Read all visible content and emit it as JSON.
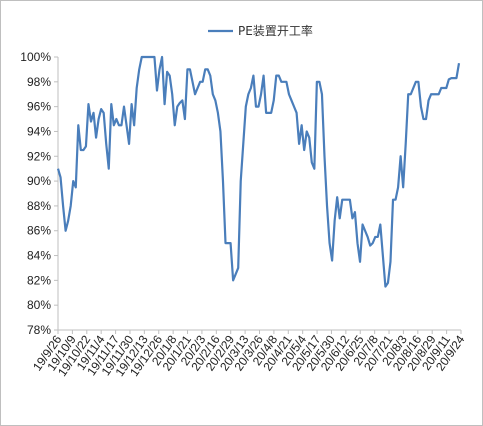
{
  "chart_data": {
    "type": "line",
    "title": "",
    "xlabel": "",
    "ylabel": "",
    "ylim": [
      78,
      100
    ],
    "y_ticks": [
      "78%",
      "80%",
      "82%",
      "84%",
      "86%",
      "88%",
      "90%",
      "92%",
      "94%",
      "96%",
      "98%",
      "100%"
    ],
    "x_ticks": [
      "19/9/26",
      "19/10/9",
      "19/10/22",
      "19/11/4",
      "19/11/17",
      "19/11/30",
      "19/12/13",
      "19/12/26",
      "20/1/8",
      "20/1/21",
      "20/2/3",
      "20/2/16",
      "20/2/29",
      "20/3/13",
      "20/3/26",
      "20/4/8",
      "20/4/21",
      "20/5/4",
      "20/5/17",
      "20/5/30",
      "20/6/12",
      "20/6/25",
      "20/7/8",
      "20/7/21",
      "20/8/3",
      "20/8/16",
      "20/8/29",
      "20/9/11",
      "20/9/24"
    ],
    "legend": {
      "position": "top-center"
    },
    "grid": false,
    "series": [
      {
        "name": "PE装置开工率",
        "color": "#4a7ebb",
        "values": [
          91.0,
          90.3,
          88.0,
          86.0,
          86.8,
          88.0,
          90.0,
          89.5,
          94.5,
          92.5,
          92.5,
          92.8,
          96.2,
          94.8,
          95.5,
          93.5,
          95.0,
          95.8,
          95.5,
          93.0,
          91.0,
          96.2,
          94.5,
          95.0,
          94.5,
          94.5,
          96.0,
          94.5,
          93.0,
          96.2,
          94.5,
          97.5,
          99.0,
          100.0,
          100.0,
          100.0,
          100.0,
          100.0,
          100.0,
          97.3,
          99.0,
          100.0,
          96.2,
          98.8,
          98.5,
          97.0,
          94.5,
          96.0,
          96.3,
          96.5,
          95.0,
          99.0,
          99.0,
          98.0,
          97.0,
          97.5,
          98.0,
          98.0,
          99.0,
          99.0,
          98.5,
          97.0,
          96.5,
          95.5,
          94.0,
          90.0,
          85.0,
          85.0,
          85.0,
          82.0,
          82.5,
          83.0,
          90.0,
          93.0,
          96.0,
          97.0,
          97.5,
          98.5,
          96.0,
          96.0,
          97.0,
          98.5,
          95.5,
          95.5,
          95.5,
          96.5,
          98.5,
          98.5,
          98.0,
          98.0,
          98.0,
          97.0,
          96.5,
          96.0,
          95.5,
          93.0,
          94.5,
          92.5,
          94.0,
          93.5,
          91.5,
          91.0,
          98.0,
          98.0,
          97.0,
          92.0,
          88.0,
          85.0,
          83.6,
          86.8,
          88.7,
          87.0,
          88.5,
          88.5,
          88.5,
          88.5,
          87.0,
          87.5,
          85.0,
          83.5,
          86.5,
          86.0,
          85.5,
          84.8,
          85.0,
          85.5,
          85.5,
          86.5,
          84.0,
          81.5,
          81.8,
          83.5,
          88.5,
          88.5,
          89.5,
          92.0,
          89.5,
          93.0,
          97.0,
          97.0,
          97.5,
          98.0,
          98.0,
          96.0,
          95.0,
          95.0,
          96.5,
          97.0,
          97.0,
          97.0,
          97.0,
          97.5,
          97.5,
          97.5,
          98.2,
          98.3,
          98.3,
          98.3,
          99.5
        ]
      }
    ]
  }
}
